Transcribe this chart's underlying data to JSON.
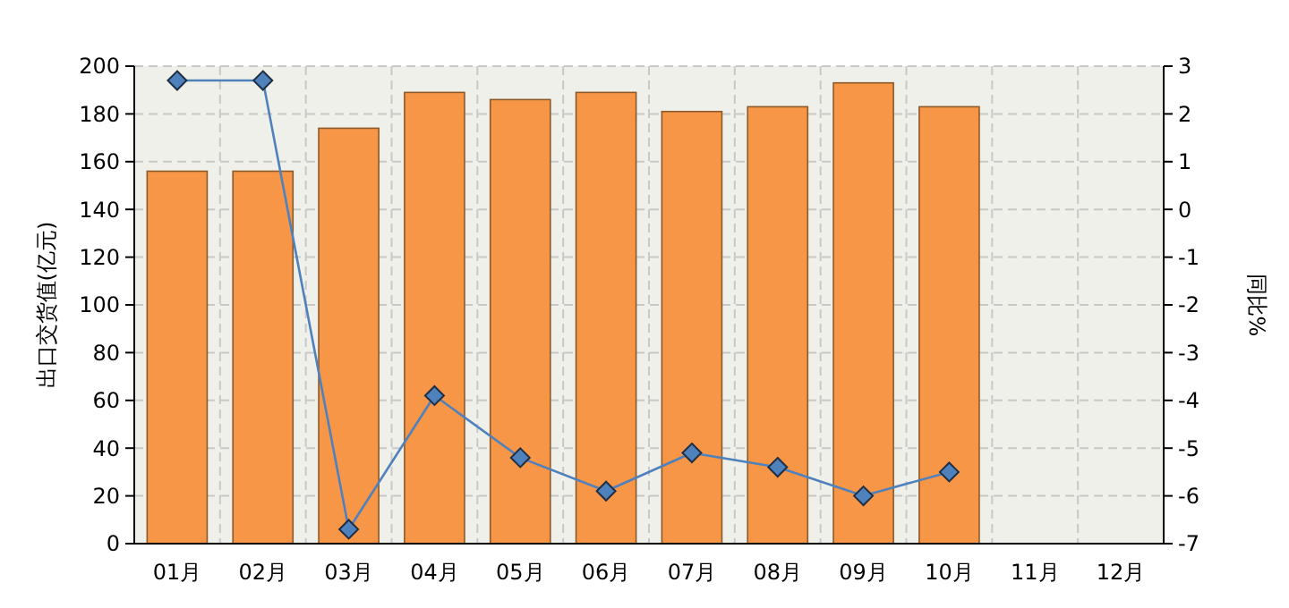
{
  "chart_data": {
    "type": "bar",
    "ylabel": "出口交货值(亿元)",
    "y2label": "同比%",
    "categories": [
      "01月",
      "02月",
      "03月",
      "04月",
      "05月",
      "06月",
      "07月",
      "08月",
      "09月",
      "10月",
      "11月",
      "12月"
    ],
    "series": [
      {
        "color": "#f79646",
        "values": [
          156,
          156,
          174,
          189,
          186,
          189,
          181,
          183,
          193,
          183,
          null,
          null
        ]
      },
      {
        "type": "line",
        "axis": "y2",
        "color": "#4f81bd",
        "marker": "diamond",
        "values": [
          2.7,
          2.7,
          -6.7,
          -3.9,
          -5.2,
          -5.9,
          -5.1,
          -5.4,
          -6.0,
          -5.5,
          null,
          null
        ]
      }
    ],
    "ylim": [
      0,
      200
    ],
    "yticks": [
      0,
      20,
      40,
      60,
      80,
      100,
      120,
      140,
      160,
      180,
      200
    ],
    "y2lim": [
      -7,
      3
    ],
    "y2ticks": [
      -7,
      -6,
      -5,
      -4,
      -3,
      -2,
      -1,
      0,
      1,
      2,
      3
    ],
    "grid": true
  }
}
